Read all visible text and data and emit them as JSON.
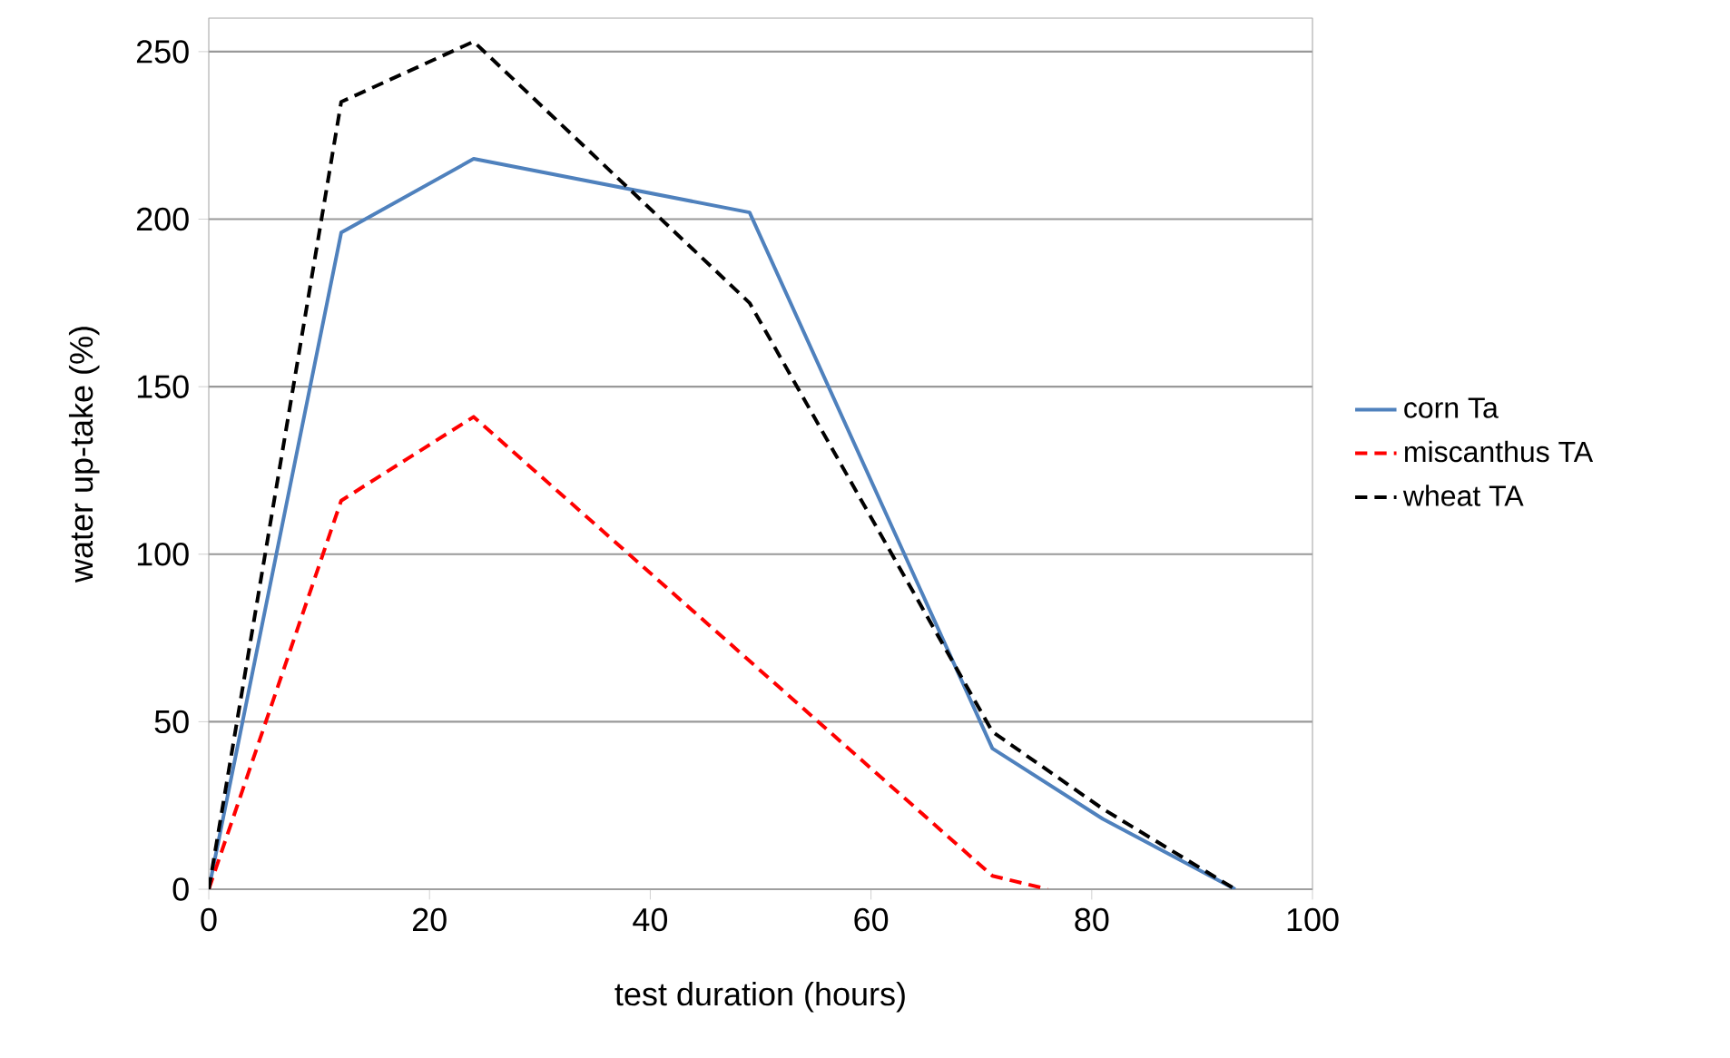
{
  "chart_data": {
    "type": "line",
    "xlabel": "test duration (hours)",
    "ylabel": "water up-take (%)",
    "xlim": [
      0,
      100
    ],
    "ylim": [
      0,
      260
    ],
    "xticks": [
      0,
      20,
      40,
      60,
      80,
      100
    ],
    "yticks": [
      0,
      50,
      100,
      150,
      200,
      250
    ],
    "grid": "y",
    "legend": "right",
    "marker": "none",
    "series": [
      {
        "name": "corn Ta",
        "color": "#4f81bd",
        "line_style": "solid",
        "x": [
          0,
          12,
          24,
          49,
          71,
          81,
          93
        ],
        "values": [
          0,
          196,
          218,
          202,
          42,
          21,
          0
        ]
      },
      {
        "name": "miscanthus TA",
        "color": "#ff0000",
        "line_style": "dashed",
        "x": [
          0,
          12,
          24,
          71,
          76
        ],
        "values": [
          0,
          116,
          141,
          4,
          0
        ]
      },
      {
        "name": "wheat TA",
        "color": "#000000",
        "line_style": "dashed",
        "x": [
          0,
          12,
          24,
          49,
          71,
          81,
          93
        ],
        "values": [
          0,
          235,
          253,
          175,
          47,
          24,
          0
        ]
      }
    ]
  }
}
